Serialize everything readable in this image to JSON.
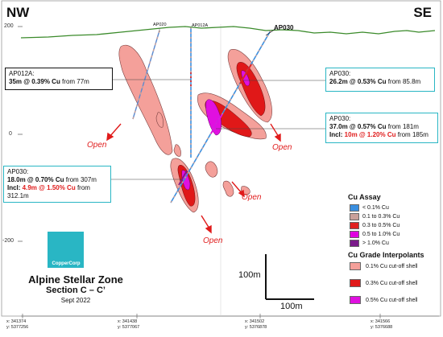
{
  "directions": {
    "left": "NW",
    "right": "SE"
  },
  "elevation_labels": [
    "200",
    "0",
    "-200"
  ],
  "drillholes": {
    "ap020": "AP020",
    "ap012a": "AP012A",
    "ap030": "AP030"
  },
  "callouts": {
    "ap012a": {
      "hole": "AP012A:",
      "interval": "35m @ 0.39% Cu",
      "from": " from 77m"
    },
    "ap030_upper": {
      "hole": "AP030:",
      "interval": "26.2m @ 0.53% Cu",
      "from": " from 85.8m"
    },
    "ap030_mid": {
      "hole": "AP030:",
      "interval": "37.0m @ 0.57% Cu",
      "from": " from 181m",
      "incl_label": "Incl: ",
      "incl_interval": "10m @ 1.20% Cu",
      "incl_from": " from 185m"
    },
    "ap030_lower": {
      "hole": "AP030:",
      "interval": "18.0m @ 0.70% Cu",
      "from": " from 307m",
      "incl_label": "Incl: ",
      "incl_interval": "4.9m @ 1.50% Cu",
      "incl_from": " from",
      "incl_from2": "312.1m"
    }
  },
  "open_labels": [
    "Open",
    "Open",
    "Open",
    "Open"
  ],
  "legend": {
    "assay_title": "Cu Assay",
    "assay_items": [
      {
        "label": "< 0.1% Cu",
        "color": "#3a8fe0"
      },
      {
        "label": "0.1 to 0.3% Cu",
        "color": "#c9a09a"
      },
      {
        "label": "0.3 to 0.5% Cu",
        "color": "#e02020"
      },
      {
        "label": "0.5 to 1.0% Cu",
        "color": "#e000e0"
      },
      {
        "label": "> 1.0% Cu",
        "color": "#7a1a8a"
      }
    ],
    "interp_title": "Cu Grade Interpolants",
    "interp_items": [
      {
        "label": "0.1% Cu cut-off shell",
        "color": "#f4a09a"
      },
      {
        "label": "0.3% Cu cut-off shell",
        "color": "#e01818"
      },
      {
        "label": "0.5% Cu cut-off shell",
        "color": "#e010e0"
      }
    ]
  },
  "logo": {
    "name": "CopperCorp"
  },
  "zone": {
    "title": "Alpine Stellar Zone",
    "section": "Section C – C’",
    "date": "Sept 2022"
  },
  "scale": {
    "vertical": "100m",
    "horizontal": "100m"
  },
  "coords": [
    {
      "x": "x: 341374",
      "y": "y: 5377256"
    },
    {
      "x": "x: 341438",
      "y": "y: 5377067"
    },
    {
      "x": "x: 341502",
      "y": "y: 5376878"
    },
    {
      "x": "x: 341566",
      "y": "y: 5376688"
    }
  ],
  "colors": {
    "teal": "#29b6c4",
    "topo": "#3a8a2a",
    "open": "#e01b1b"
  }
}
